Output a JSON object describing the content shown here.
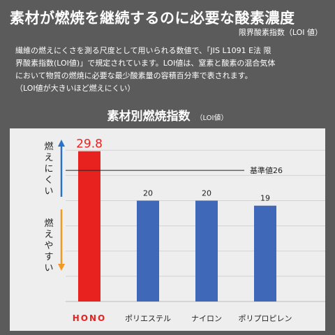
{
  "header": {
    "headline": "素材が燃焼を継続するのに必要な酸素濃度",
    "subhead": "限界酸素指数（LOI 値）",
    "description": [
      "繊維の燃えにくさを測る尺度として用いられる数値で、「JIS L1091 E法 限",
      "界酸素指数(LOI値)」で規定されています。LOI値は、窒素と酸素の混合気体",
      "において物質の燃焼に必要な最少酸素量の容積百分率で表されます。",
      "（LOI値が大きいほど燃えにくい）"
    ]
  },
  "chart_data": {
    "type": "bar",
    "title": "素材別燃焼指数",
    "subtitle": "（LOI値）",
    "categories": [
      "HONO",
      "ポリエステル",
      "ナイロン",
      "ポリプロピレン"
    ],
    "values": [
      29.8,
      20,
      20,
      19
    ],
    "value_labels": [
      "29.8",
      "20",
      "20",
      "19"
    ],
    "bar_colors": [
      "#e8231f",
      "#3f69b8",
      "#3f69b8",
      "#3f69b8"
    ],
    "highlight_color": "#e8231f",
    "reference": {
      "label": "基準値26",
      "value": 26
    },
    "ylim": [
      0,
      31
    ],
    "gridlines": [
      5,
      10,
      15,
      20,
      25,
      30
    ],
    "up_arrow_label": "燃えにくい",
    "down_arrow_label": "燃えやすい",
    "up_arrow_color": "#2b73c7",
    "down_arrow_color": "#f29a1f",
    "grid": true
  }
}
